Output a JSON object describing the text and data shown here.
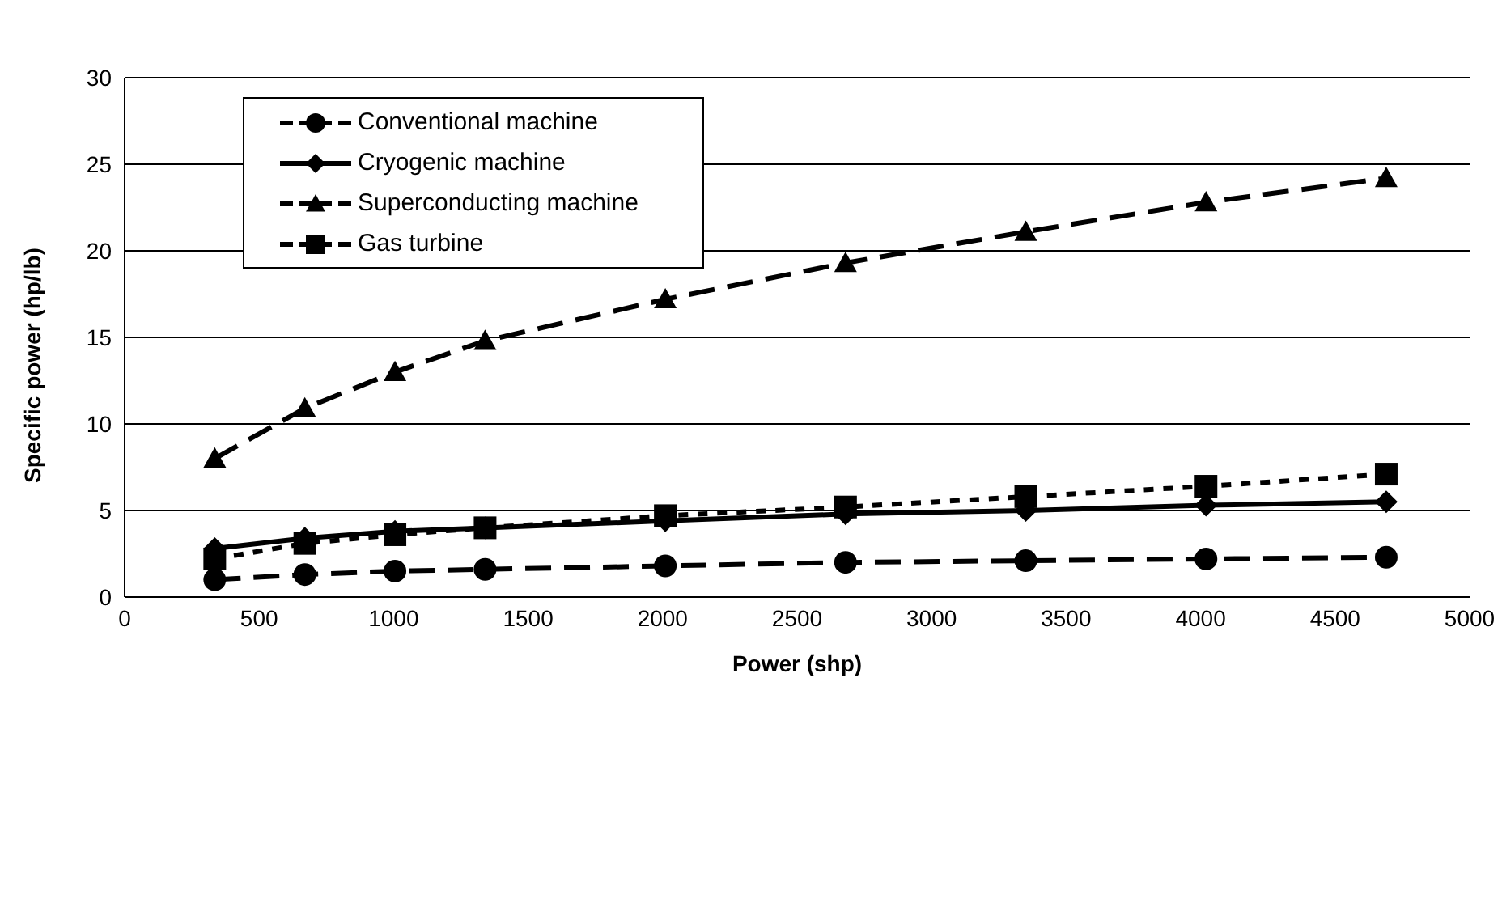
{
  "chart_data": {
    "type": "line",
    "xlabel": "Power (shp)",
    "ylabel": "Specific power (hp/lb)",
    "x": [
      335,
      670,
      1005,
      1340,
      2010,
      2680,
      3350,
      4020,
      4690
    ],
    "series": [
      {
        "name": "Conventional machine",
        "color": "#000000",
        "marker": "circle",
        "line_style": "dashed",
        "values": [
          1.0,
          1.3,
          1.5,
          1.6,
          1.8,
          2.0,
          2.1,
          2.2,
          2.3
        ]
      },
      {
        "name": "Cryogenic machine",
        "color": "#000000",
        "marker": "diamond",
        "line_style": "solid",
        "values": [
          2.8,
          3.4,
          3.8,
          4.0,
          4.4,
          4.8,
          5.0,
          5.3,
          5.5
        ]
      },
      {
        "name": "Superconducting machine",
        "color": "#000000",
        "marker": "triangle",
        "line_style": "dashed",
        "values": [
          8.0,
          10.9,
          13.0,
          14.8,
          17.2,
          19.3,
          21.1,
          22.8,
          24.2
        ]
      },
      {
        "name": "Gas turbine",
        "color": "#000000",
        "marker": "square",
        "line_style": "dotted",
        "values": [
          2.2,
          3.1,
          3.6,
          4.0,
          4.7,
          5.2,
          5.8,
          6.4,
          7.1
        ]
      }
    ],
    "xlim": [
      0,
      5000
    ],
    "xticks": [
      0,
      500,
      1000,
      1500,
      2000,
      2500,
      3000,
      3500,
      4000,
      4500,
      5000
    ],
    "ylim": [
      0,
      30
    ],
    "yticks": [
      0,
      5,
      10,
      15,
      20,
      25,
      30
    ],
    "grid": "y",
    "legend": "top left"
  }
}
